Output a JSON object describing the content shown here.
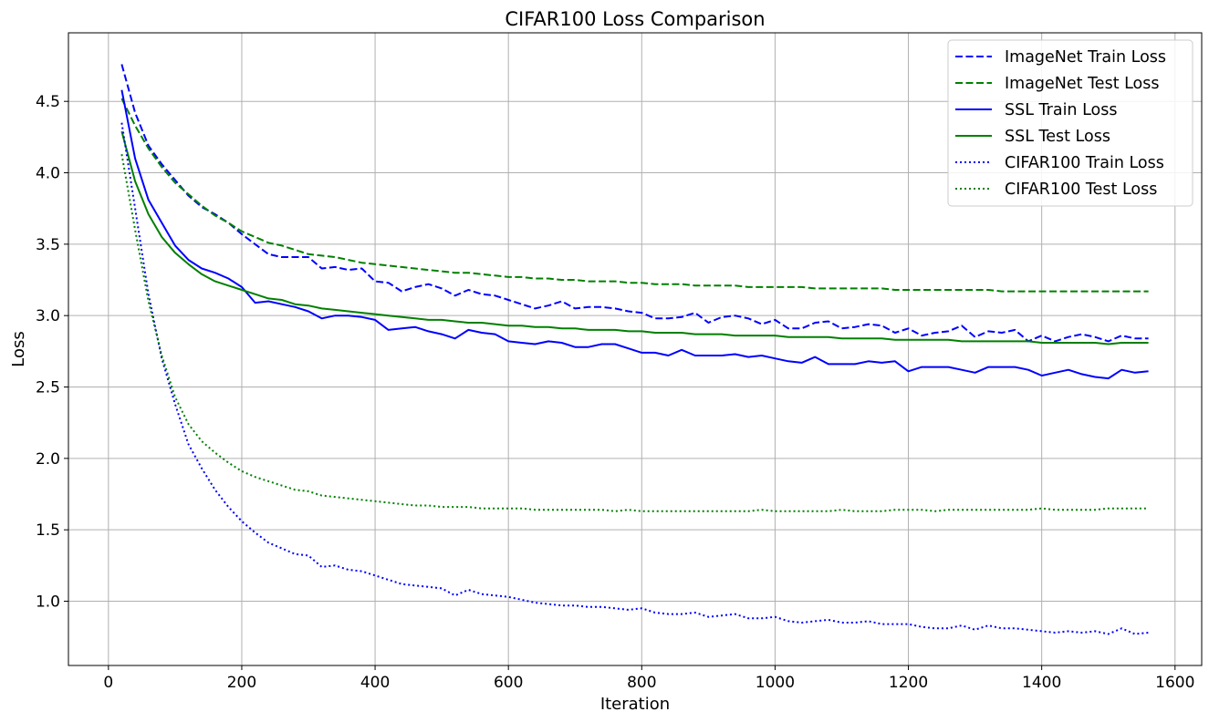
{
  "chart_data": {
    "type": "line",
    "title": "CIFAR100 Loss Comparison",
    "xlabel": "Iteration",
    "ylabel": "Loss",
    "xlim": [
      -60,
      1640
    ],
    "ylim": [
      0.55,
      4.98
    ],
    "xticks": [
      0,
      200,
      400,
      600,
      800,
      1000,
      1200,
      1400,
      1600
    ],
    "xtick_labels": [
      "0",
      "200",
      "400",
      "600",
      "800",
      "1000",
      "1200",
      "1400",
      "1600"
    ],
    "yticks": [
      1.0,
      1.5,
      2.0,
      2.5,
      3.0,
      3.5,
      4.0,
      4.5
    ],
    "ytick_labels": [
      "1.0",
      "1.5",
      "2.0",
      "2.5",
      "3.0",
      "3.5",
      "4.0",
      "4.5"
    ],
    "grid": true,
    "legend_position": "top-right",
    "x": [
      20,
      40,
      60,
      80,
      100,
      120,
      140,
      160,
      180,
      200,
      220,
      240,
      260,
      280,
      300,
      320,
      340,
      360,
      380,
      400,
      420,
      440,
      460,
      480,
      500,
      520,
      540,
      560,
      580,
      600,
      620,
      640,
      660,
      680,
      700,
      720,
      740,
      760,
      780,
      800,
      820,
      840,
      860,
      880,
      900,
      920,
      940,
      960,
      980,
      1000,
      1020,
      1040,
      1060,
      1080,
      1100,
      1120,
      1140,
      1160,
      1180,
      1200,
      1220,
      1240,
      1260,
      1280,
      1300,
      1320,
      1340,
      1360,
      1380,
      1400,
      1420,
      1440,
      1460,
      1480,
      1500,
      1520,
      1540,
      1560
    ],
    "series": [
      {
        "name": "ImageNet Train Loss",
        "color": "#0000ff",
        "dash": "dashed",
        "values": [
          4.76,
          4.42,
          4.19,
          4.06,
          3.95,
          3.84,
          3.76,
          3.71,
          3.65,
          3.57,
          3.5,
          3.43,
          3.41,
          3.41,
          3.41,
          3.33,
          3.34,
          3.32,
          3.33,
          3.24,
          3.23,
          3.17,
          3.2,
          3.22,
          3.19,
          3.14,
          3.18,
          3.15,
          3.14,
          3.11,
          3.08,
          3.05,
          3.07,
          3.1,
          3.05,
          3.06,
          3.06,
          3.05,
          3.03,
          3.02,
          2.98,
          2.98,
          2.99,
          3.02,
          2.95,
          2.99,
          3.0,
          2.98,
          2.94,
          2.97,
          2.91,
          2.91,
          2.95,
          2.96,
          2.91,
          2.92,
          2.94,
          2.93,
          2.88,
          2.91,
          2.86,
          2.88,
          2.89,
          2.93,
          2.85,
          2.89,
          2.88,
          2.9,
          2.82,
          2.86,
          2.82,
          2.85,
          2.87,
          2.85,
          2.82,
          2.86,
          2.84,
          2.84
        ]
      },
      {
        "name": "ImageNet Test Loss",
        "color": "#008000",
        "dash": "dashed",
        "values": [
          4.52,
          4.33,
          4.17,
          4.04,
          3.93,
          3.85,
          3.77,
          3.7,
          3.65,
          3.59,
          3.55,
          3.51,
          3.49,
          3.46,
          3.43,
          3.42,
          3.41,
          3.39,
          3.37,
          3.36,
          3.35,
          3.34,
          3.33,
          3.32,
          3.31,
          3.3,
          3.3,
          3.29,
          3.28,
          3.27,
          3.27,
          3.26,
          3.26,
          3.25,
          3.25,
          3.24,
          3.24,
          3.24,
          3.23,
          3.23,
          3.22,
          3.22,
          3.22,
          3.21,
          3.21,
          3.21,
          3.21,
          3.2,
          3.2,
          3.2,
          3.2,
          3.2,
          3.19,
          3.19,
          3.19,
          3.19,
          3.19,
          3.19,
          3.18,
          3.18,
          3.18,
          3.18,
          3.18,
          3.18,
          3.18,
          3.18,
          3.17,
          3.17,
          3.17,
          3.17,
          3.17,
          3.17,
          3.17,
          3.17,
          3.17,
          3.17,
          3.17,
          3.17
        ]
      },
      {
        "name": "SSL Train Loss",
        "color": "#0000ff",
        "dash": "solid",
        "values": [
          4.58,
          4.1,
          3.81,
          3.65,
          3.49,
          3.39,
          3.33,
          3.3,
          3.26,
          3.2,
          3.09,
          3.1,
          3.08,
          3.06,
          3.03,
          2.98,
          3.0,
          3.0,
          2.99,
          2.97,
          2.9,
          2.91,
          2.92,
          2.89,
          2.87,
          2.84,
          2.9,
          2.88,
          2.87,
          2.82,
          2.81,
          2.8,
          2.82,
          2.81,
          2.78,
          2.78,
          2.8,
          2.8,
          2.77,
          2.74,
          2.74,
          2.72,
          2.76,
          2.72,
          2.72,
          2.72,
          2.73,
          2.71,
          2.72,
          2.7,
          2.68,
          2.67,
          2.71,
          2.66,
          2.66,
          2.66,
          2.68,
          2.67,
          2.68,
          2.61,
          2.64,
          2.64,
          2.64,
          2.62,
          2.6,
          2.64,
          2.64,
          2.64,
          2.62,
          2.58,
          2.6,
          2.62,
          2.59,
          2.57,
          2.56,
          2.62,
          2.6,
          2.61
        ]
      },
      {
        "name": "SSL Test Loss",
        "color": "#008000",
        "dash": "solid",
        "values": [
          4.29,
          3.94,
          3.71,
          3.55,
          3.44,
          3.36,
          3.29,
          3.24,
          3.21,
          3.18,
          3.15,
          3.12,
          3.11,
          3.08,
          3.07,
          3.05,
          3.04,
          3.03,
          3.02,
          3.01,
          3.0,
          2.99,
          2.98,
          2.97,
          2.97,
          2.96,
          2.95,
          2.95,
          2.94,
          2.93,
          2.93,
          2.92,
          2.92,
          2.91,
          2.91,
          2.9,
          2.9,
          2.9,
          2.89,
          2.89,
          2.88,
          2.88,
          2.88,
          2.87,
          2.87,
          2.87,
          2.86,
          2.86,
          2.86,
          2.86,
          2.85,
          2.85,
          2.85,
          2.85,
          2.84,
          2.84,
          2.84,
          2.84,
          2.83,
          2.83,
          2.83,
          2.83,
          2.83,
          2.82,
          2.82,
          2.82,
          2.82,
          2.82,
          2.82,
          2.81,
          2.81,
          2.81,
          2.81,
          2.81,
          2.8,
          2.81,
          2.81,
          2.81
        ]
      },
      {
        "name": "CIFAR100 Train Loss",
        "color": "#0000ff",
        "dash": "dotted",
        "values": [
          4.35,
          3.75,
          3.15,
          2.7,
          2.38,
          2.1,
          1.93,
          1.78,
          1.66,
          1.56,
          1.48,
          1.41,
          1.37,
          1.33,
          1.32,
          1.24,
          1.25,
          1.22,
          1.21,
          1.18,
          1.15,
          1.12,
          1.11,
          1.1,
          1.09,
          1.04,
          1.08,
          1.05,
          1.04,
          1.03,
          1.01,
          0.99,
          0.98,
          0.97,
          0.97,
          0.96,
          0.96,
          0.95,
          0.94,
          0.95,
          0.92,
          0.91,
          0.91,
          0.92,
          0.89,
          0.9,
          0.91,
          0.88,
          0.88,
          0.89,
          0.86,
          0.85,
          0.86,
          0.87,
          0.85,
          0.85,
          0.86,
          0.84,
          0.84,
          0.84,
          0.82,
          0.81,
          0.81,
          0.83,
          0.8,
          0.83,
          0.81,
          0.81,
          0.8,
          0.79,
          0.78,
          0.79,
          0.78,
          0.79,
          0.77,
          0.81,
          0.77,
          0.78
        ]
      },
      {
        "name": "CIFAR100 Test Loss",
        "color": "#008000",
        "dash": "dotted",
        "values": [
          4.13,
          3.6,
          3.1,
          2.72,
          2.43,
          2.24,
          2.12,
          2.04,
          1.97,
          1.91,
          1.87,
          1.84,
          1.81,
          1.78,
          1.77,
          1.74,
          1.73,
          1.72,
          1.71,
          1.7,
          1.69,
          1.68,
          1.67,
          1.67,
          1.66,
          1.66,
          1.66,
          1.65,
          1.65,
          1.65,
          1.65,
          1.64,
          1.64,
          1.64,
          1.64,
          1.64,
          1.64,
          1.63,
          1.64,
          1.63,
          1.63,
          1.63,
          1.63,
          1.63,
          1.63,
          1.63,
          1.63,
          1.63,
          1.64,
          1.63,
          1.63,
          1.63,
          1.63,
          1.63,
          1.64,
          1.63,
          1.63,
          1.63,
          1.64,
          1.64,
          1.64,
          1.63,
          1.64,
          1.64,
          1.64,
          1.64,
          1.64,
          1.64,
          1.64,
          1.65,
          1.64,
          1.64,
          1.64,
          1.64,
          1.65,
          1.65,
          1.65,
          1.65
        ]
      }
    ]
  }
}
